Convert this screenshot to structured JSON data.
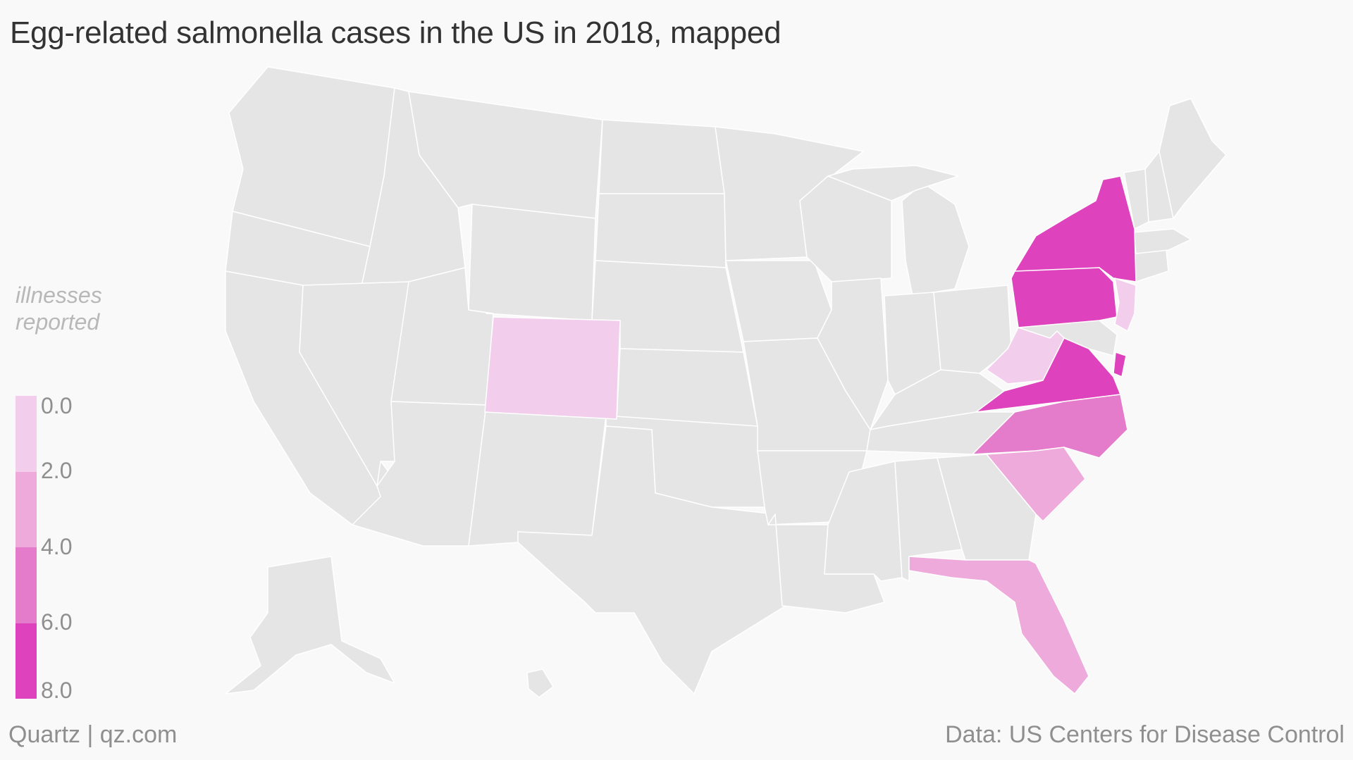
{
  "title": "Egg-related salmonella cases in the US in 2018, mapped",
  "legend": {
    "title_lines": [
      "illnesses",
      "reported"
    ],
    "ticks": [
      "0.0",
      "2.0",
      "4.0",
      "6.0",
      "8.0"
    ],
    "colors": [
      "#f3cdec",
      "#eeaadb",
      "#e47bcb",
      "#de42bc"
    ]
  },
  "base_color": "#e5e5e5",
  "footer": {
    "credit": "Quartz | qz.com",
    "source": "Data: US Centers for Disease Control"
  },
  "chart_data": {
    "type": "choropleth",
    "title": "Egg-related salmonella cases in the US in 2018, mapped",
    "legend_title": "illnesses reported",
    "scale": {
      "min": 0,
      "max": 8,
      "bins": [
        [
          0,
          2
        ],
        [
          2,
          4
        ],
        [
          4,
          6
        ],
        [
          6,
          8
        ]
      ]
    },
    "highlighted_states": [
      {
        "state": "New York",
        "bin": 3
      },
      {
        "state": "Pennsylvania",
        "bin": 3
      },
      {
        "state": "Virginia",
        "bin": 3
      },
      {
        "state": "Delaware",
        "bin": 3
      },
      {
        "state": "North Carolina",
        "bin": 2
      },
      {
        "state": "South Carolina",
        "bin": 1
      },
      {
        "state": "Florida",
        "bin": 1
      },
      {
        "state": "Colorado",
        "bin": 0
      },
      {
        "state": "West Virginia",
        "bin": 0
      },
      {
        "state": "New Jersey",
        "bin": 0
      }
    ]
  }
}
